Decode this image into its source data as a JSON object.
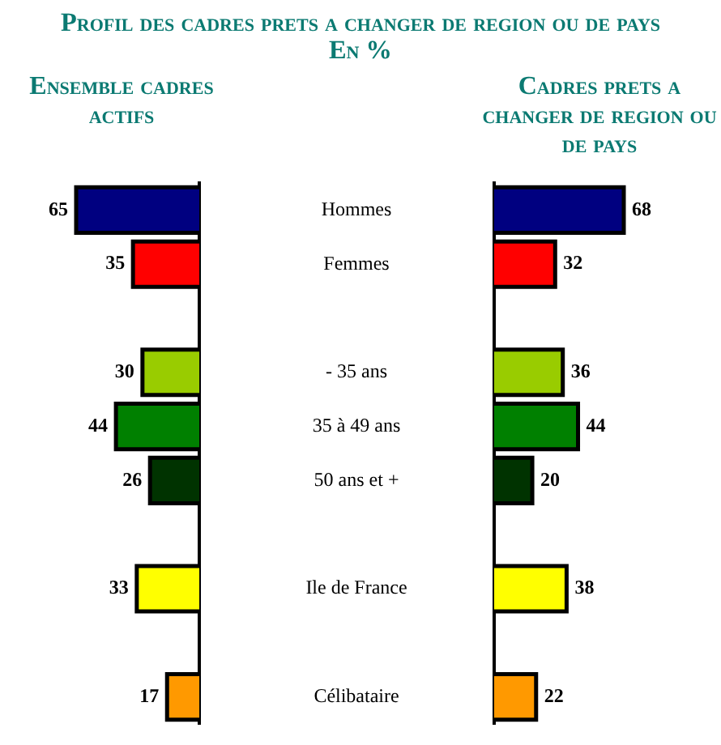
{
  "chart_data": [
    {
      "type": "bar",
      "orientation": "horizontal",
      "title": "Profil des cadres prets a changer de region ou de pays",
      "subtitle": "En %",
      "categories": [
        "Hommes",
        "Femmes",
        null,
        "- 35 ans",
        "35 à 49 ans",
        "50 ans et +",
        null,
        "Ile de France",
        null,
        "Célibataire"
      ],
      "series": [
        {
          "name": "Ensemble cadres actifs",
          "colors": [
            "#000080",
            "#ff0000",
            null,
            "#99cc00",
            "#008000",
            "#003300",
            null,
            "#ffff00",
            null,
            "#ff9900"
          ],
          "values": [
            65,
            35,
            null,
            30,
            44,
            26,
            null,
            33,
            null,
            17
          ]
        }
      ],
      "xlim": [
        65,
        0
      ],
      "data_labels": true,
      "tick_labels": "y"
    },
    {
      "type": "bar",
      "orientation": "horizontal",
      "categories": [
        null,
        null,
        null,
        null,
        null,
        null,
        null,
        null,
        null,
        null
      ],
      "series": [
        {
          "name": "Cadres prets a changer de region ou de pays",
          "colors": [
            "#000080",
            "#ff0000",
            null,
            "#99cc00",
            "#008000",
            "#003300",
            null,
            "#ffff00",
            null,
            "#ff9900"
          ],
          "values": [
            68,
            32,
            null,
            36,
            44,
            20,
            null,
            38,
            null,
            22
          ]
        }
      ],
      "xlim": [
        0,
        68
      ],
      "data_labels": true,
      "tick_labels": false
    }
  ]
}
